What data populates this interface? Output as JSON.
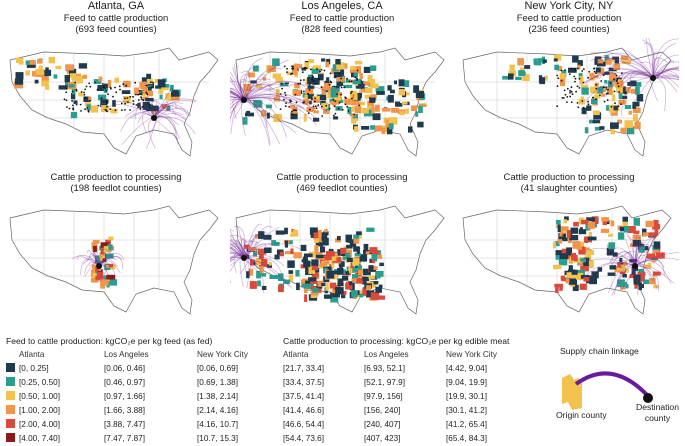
{
  "cities": [
    "Atlanta, GA",
    "Los Angeles, CA",
    "New York City, NY"
  ],
  "row1_titles": [
    [
      "Feed to cattle production",
      "(693 feed counties)"
    ],
    [
      "Feed to cattle production",
      "(828 feed counties)"
    ],
    [
      "Feed to cattle production",
      "(236 feed counties)"
    ]
  ],
  "row2_titles": [
    [
      "Cattle production to processing",
      "(198 feedlot counties)"
    ],
    [
      "Cattle production to processing",
      "(469 feedlot counties)"
    ],
    [
      "Cattle production to processing",
      "(41 slaughter counties)"
    ]
  ],
  "legend": {
    "feed_header": "Feed to cattle production: kgCO₂e per kg feed (as fed)",
    "proc_header": "Cattle production to processing: kgCO₂e per kg edible meat",
    "city_labels": [
      "Atlanta",
      "Los Angeles",
      "New York City"
    ],
    "colors": [
      "#1e3a4c",
      "#2a9d8f",
      "#f2c14e",
      "#f0954a",
      "#d94a3a",
      "#8b1a1a"
    ],
    "atlanta_bins": [
      "[0, 0.25]",
      "[0.25, 0.50]",
      "[0.50, 1.00]",
      "[1.00, 2.00]",
      "[2.00, 4.00]",
      "[4.00, 7.40]"
    ],
    "feed_la": [
      "[0.06, 0.46]",
      "[0.46, 0.97]",
      "[0.97, 1.66]",
      "[1.66, 3.88]",
      "[3.88, 7.47]",
      "[7.47, 7.87]"
    ],
    "feed_nyc": [
      "[0.06, 0.69]",
      "[0.69, 1.38]",
      "[1.38, 2.14]",
      "[2.14, 4.16]",
      "[4.16, 10.7]",
      "[10.7, 15.3]"
    ],
    "proc_atl": [
      "[21.7, 33.4]",
      "[33.4, 37.5]",
      "[37.5, 41.4]",
      "[41.4, 46.6]",
      "[46.6, 54.4]",
      "[54.4, 73.6]"
    ],
    "proc_la": [
      "[6.93, 52.1]",
      "[52.1, 97.9]",
      "[97.9, 156]",
      "[156, 240]",
      "[240, 407]",
      "[407, 423]"
    ],
    "proc_nyc": [
      "[4.42, 9.04]",
      "[9.04, 19.9]",
      "[19.9, 30.1]",
      "[30.1, 41.2]",
      "[41.2, 65.4]",
      "[65.4, 84.3]"
    ]
  },
  "schematic": {
    "title": "Supply chain linkage",
    "origin": "Origin county",
    "dest_line1": "Destination",
    "dest_line2": "county"
  }
}
